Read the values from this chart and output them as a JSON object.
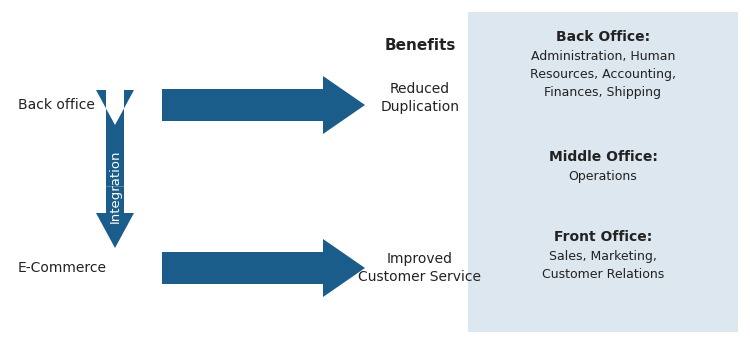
{
  "arrow_color": "#1a5c8a",
  "bg_color": "#ffffff",
  "panel_bg_color": "#dde7f0",
  "text_color": "#222222",
  "integration_text_color": "#ffffff",
  "back_office_label": "Back office",
  "ecommerce_label": "E-Commerce",
  "integration_label": "Integration",
  "benefits_title": "Benefits",
  "benefit1": "Reduced\nDuplication",
  "benefit2": "Improved\nCustomer Service",
  "back_office_title": "Back Office:",
  "back_office_desc": "Administration, Human\nResources, Accounting,\nFinances, Shipping",
  "middle_office_title": "Middle Office:",
  "middle_office_desc": "Operations",
  "front_office_title": "Front Office:",
  "front_office_desc": "Sales, Marketing,\nCustomer Relations",
  "label_fontsize": 10,
  "panel_title_fontsize": 10,
  "panel_desc_fontsize": 9
}
